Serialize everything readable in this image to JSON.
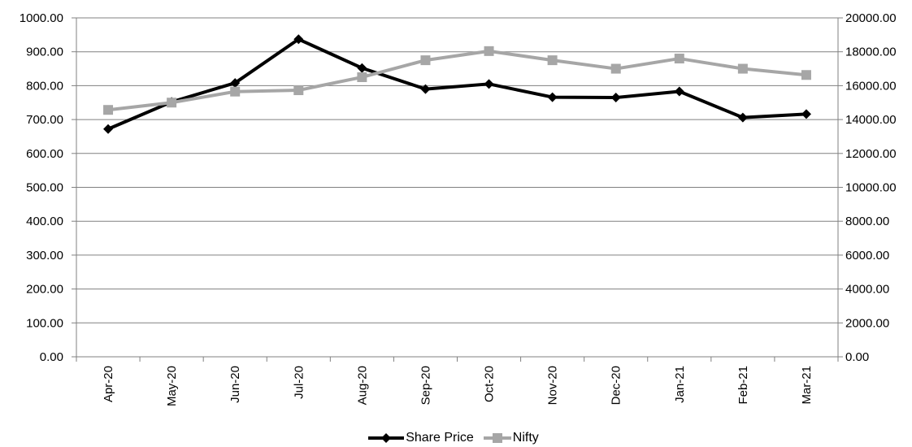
{
  "chart_data": {
    "type": "line",
    "categories": [
      "Apr-20",
      "May-20",
      "Jun-20",
      "Jul-20",
      "Aug-20",
      "Sep-20",
      "Oct-20",
      "Nov-20",
      "Dec-20",
      "Jan-21",
      "Feb-21",
      "Mar-21"
    ],
    "y_left": {
      "min": 0,
      "max": 1000,
      "step": 100,
      "tick_labels": [
        "0.00",
        "100.00",
        "200.00",
        "300.00",
        "400.00",
        "500.00",
        "600.00",
        "700.00",
        "800.00",
        "900.00",
        "1000.00"
      ]
    },
    "y_right": {
      "min": 0,
      "max": 20000,
      "step": 2000,
      "tick_labels": [
        "0.00",
        "2000.00",
        "4000.00",
        "6000.00",
        "8000.00",
        "10000.00",
        "12000.00",
        "14000.00",
        "16000.00",
        "18000.00",
        "20000.00"
      ]
    },
    "grid": "horizontal",
    "legend_position": "bottom",
    "series": [
      {
        "name": "Share Price",
        "axis": "left",
        "color": "#000000",
        "marker": "diamond",
        "values": [
          672,
          752,
          808,
          937,
          852,
          790,
          805,
          766,
          765,
          783,
          706,
          716
        ]
      },
      {
        "name": "Nifty",
        "axis": "right",
        "color": "#a6a6a6",
        "marker": "square",
        "values": [
          14570,
          15000,
          15650,
          15730,
          16500,
          17500,
          18040,
          17500,
          17000,
          17600,
          17000,
          16630
        ]
      }
    ]
  }
}
